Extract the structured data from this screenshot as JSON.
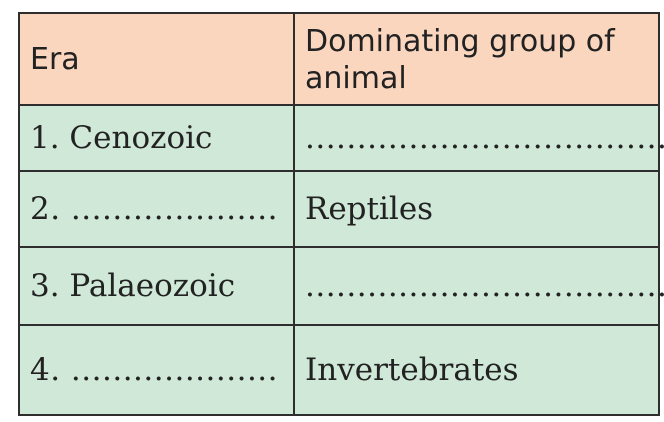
{
  "table": {
    "headers": {
      "era": "Era",
      "group": "Dominating group of animal"
    },
    "rows": [
      {
        "era": "1. Cenozoic",
        "group": "..................................."
      },
      {
        "era": "2. ....................",
        "group": "Reptiles"
      },
      {
        "era": "3. Palaeozoic",
        "group": "..................................."
      },
      {
        "era": "4. ....................",
        "group": "Invertebrates"
      }
    ]
  },
  "colors": {
    "header_bg": "#fbd6bf",
    "row_bg": "#cfe8d7",
    "border": "#2e2e2e"
  }
}
